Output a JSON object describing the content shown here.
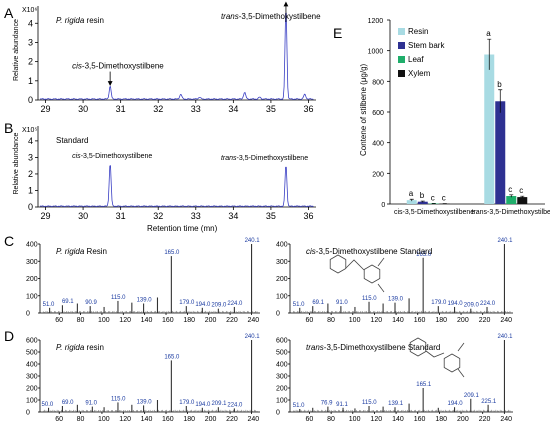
{
  "panel_letters": [
    "A",
    "B",
    "C",
    "D",
    "E"
  ],
  "chromatograms": [
    {
      "panel": "A",
      "sample": "P. rigida resin",
      "yexp": "X10⁶",
      "ylabel": "Relative abundance",
      "ticks_x": [
        "29",
        "30",
        "31",
        "32",
        "33",
        "34",
        "35",
        "36"
      ],
      "ticks_y": [
        "0",
        "1",
        "2",
        "3",
        "4"
      ],
      "annot": [
        {
          "text": "cis-3,5-Dimethoxystilbene",
          "x": 30.72
        },
        {
          "text": "trans-3,5-Dimethoxystilbene",
          "x": 35.4
        }
      ],
      "peaks": [
        {
          "x": 30.72,
          "y": 0.7
        },
        {
          "x": 35.4,
          "y": 4.85
        }
      ]
    },
    {
      "panel": "B",
      "sample": "Standard",
      "yexp": "X10⁵",
      "ylabel": "Relative abundance",
      "xlabel": "Retention time (mn)",
      "ticks_x": [
        "29",
        "30",
        "31",
        "32",
        "33",
        "34",
        "35",
        "36"
      ],
      "ticks_y": [
        "0",
        "1",
        "2",
        "3",
        "4"
      ],
      "annot": [
        {
          "text": "cis-3,5-Dimethoxystilbene",
          "x": 30.72
        },
        {
          "text": "trans-3,5-Dimethoxystilbene",
          "x": 35.4
        }
      ],
      "peaks": [
        {
          "x": 30.72,
          "y": 2.65
        },
        {
          "x": 35.4,
          "y": 2.55
        }
      ]
    }
  ],
  "mass_spectra": [
    {
      "id": "C-left",
      "title_italic": "P. rigida",
      "title": " Resin",
      "yticks": [
        "0",
        "100",
        "200",
        "300",
        "400"
      ],
      "ymax": 400,
      "labels": [
        {
          "mz": 51.0,
          "t": "51.0"
        },
        {
          "mz": 69.1,
          "t": "69.1"
        },
        {
          "mz": 90.9,
          "t": "90.9"
        },
        {
          "mz": 115.0,
          "t": "115.0"
        },
        {
          "mz": 139.0,
          "t": "139.0"
        },
        {
          "mz": 165.0,
          "t": "165.0"
        },
        {
          "mz": 179.0,
          "t": "179.0"
        },
        {
          "mz": 194.0,
          "t": "194.0"
        },
        {
          "mz": 209.0,
          "t": "209.0"
        },
        {
          "mz": 224.0,
          "t": "224.0"
        },
        {
          "mz": 240.1,
          "t": "240.1"
        }
      ],
      "bars": [
        [
          51,
          30
        ],
        [
          63,
          45
        ],
        [
          77,
          55
        ],
        [
          89,
          40
        ],
        [
          102,
          35
        ],
        [
          115,
          70
        ],
        [
          128,
          60
        ],
        [
          139,
          55
        ],
        [
          152,
          90
        ],
        [
          165,
          330
        ],
        [
          179,
          40
        ],
        [
          194,
          30
        ],
        [
          209,
          25
        ],
        [
          224,
          35
        ],
        [
          240.1,
          420
        ]
      ]
    },
    {
      "id": "C-right",
      "title_italic": "cis",
      "title": "-3,5-Dimethoxystilbene  Standard",
      "yticks": [
        "0",
        "100",
        "200",
        "300",
        "400"
      ],
      "ymax": 400,
      "labels": [
        {
          "mz": 51.0,
          "t": "51.0"
        },
        {
          "mz": 69.1,
          "t": "69.1"
        },
        {
          "mz": 91.0,
          "t": "91.0"
        },
        {
          "mz": 115.0,
          "t": "115.0"
        },
        {
          "mz": 139.0,
          "t": "139.0"
        },
        {
          "mz": 165.0,
          "t": "165.0"
        },
        {
          "mz": 179.0,
          "t": "179.0"
        },
        {
          "mz": 194.0,
          "t": "194.0"
        },
        {
          "mz": 209.0,
          "t": "209.0"
        },
        {
          "mz": 224.0,
          "t": "224.0"
        },
        {
          "mz": 240.1,
          "t": "240.1"
        }
      ],
      "bars": [
        [
          51,
          30
        ],
        [
          63,
          40
        ],
        [
          77,
          55
        ],
        [
          89,
          40
        ],
        [
          102,
          35
        ],
        [
          115,
          65
        ],
        [
          128,
          55
        ],
        [
          139,
          60
        ],
        [
          152,
          85
        ],
        [
          165,
          320
        ],
        [
          179,
          40
        ],
        [
          194,
          35
        ],
        [
          209,
          25
        ],
        [
          224,
          35
        ],
        [
          240.1,
          420
        ]
      ]
    },
    {
      "id": "D-left",
      "title_italic": "P. rigida",
      "title": " resin",
      "yticks": [
        "0",
        "100",
        "200",
        "300",
        "400",
        "500",
        "600"
      ],
      "ymax": 600,
      "labels": [
        {
          "mz": 50.0,
          "t": "50.0"
        },
        {
          "mz": 69.0,
          "t": "69.0"
        },
        {
          "mz": 91.0,
          "t": "91.0"
        },
        {
          "mz": 115.0,
          "t": "115.0"
        },
        {
          "mz": 139.0,
          "t": "139.0"
        },
        {
          "mz": 165.0,
          "t": "165.0"
        },
        {
          "mz": 179.0,
          "t": "179.0"
        },
        {
          "mz": 194.0,
          "t": "194.0"
        },
        {
          "mz": 209.1,
          "t": "209.1"
        },
        {
          "mz": 224.0,
          "t": "224.0"
        },
        {
          "mz": 240.1,
          "t": "240.1"
        }
      ],
      "bars": [
        [
          50,
          35
        ],
        [
          63,
          50
        ],
        [
          77,
          60
        ],
        [
          91,
          45
        ],
        [
          102,
          40
        ],
        [
          115,
          80
        ],
        [
          128,
          60
        ],
        [
          139,
          55
        ],
        [
          152,
          100
        ],
        [
          165,
          430
        ],
        [
          179,
          50
        ],
        [
          194,
          35
        ],
        [
          209,
          40
        ],
        [
          224,
          30
        ],
        [
          240.1,
          620
        ]
      ]
    },
    {
      "id": "D-right",
      "title_italic": "trans",
      "title": "-3,5-Dimethoxystilbene  Standard",
      "yticks": [
        "0",
        "100",
        "200",
        "300",
        "400",
        "500",
        "600"
      ],
      "ymax": 600,
      "labels": [
        {
          "mz": 51.0,
          "t": "51.0"
        },
        {
          "mz": 76.9,
          "t": "76.9"
        },
        {
          "mz": 91.1,
          "t": "91.1"
        },
        {
          "mz": 115.0,
          "t": "115.0"
        },
        {
          "mz": 139.1,
          "t": "139.1"
        },
        {
          "mz": 165.1,
          "t": "165.1"
        },
        {
          "mz": 194.0,
          "t": "194.0"
        },
        {
          "mz": 209.1,
          "t": "209.1"
        },
        {
          "mz": 225.1,
          "t": "225.1"
        },
        {
          "mz": 240.1,
          "t": "240.1"
        }
      ],
      "bars": [
        [
          51,
          25
        ],
        [
          63,
          35
        ],
        [
          77,
          45
        ],
        [
          91,
          35
        ],
        [
          102,
          30
        ],
        [
          115,
          50
        ],
        [
          128,
          45
        ],
        [
          139,
          40
        ],
        [
          152,
          70
        ],
        [
          165,
          200
        ],
        [
          179,
          35
        ],
        [
          194,
          40
        ],
        [
          209,
          110
        ],
        [
          225,
          60
        ],
        [
          240.1,
          630
        ]
      ]
    }
  ],
  "ms_xticks": [
    "60",
    "80",
    "100",
    "120",
    "140",
    "160",
    "180",
    "200",
    "220",
    "240"
  ],
  "chart_data": {
    "type": "bar",
    "categories": [
      "cis-3,5-Dimethoxystilbene",
      "trans-3,5-Dimethoxystilbene"
    ],
    "series": [
      {
        "name": "Resin",
        "color": "#a8dbe3",
        "values": [
          25,
          975
        ],
        "err": [
          6,
          100
        ],
        "letters": [
          "a",
          "a"
        ]
      },
      {
        "name": "Stem bark",
        "color": "#2e3192",
        "values": [
          15,
          670
        ],
        "err": [
          4,
          75
        ],
        "letters": [
          "b",
          "b"
        ]
      },
      {
        "name": "Leaf",
        "color": "#1fae6b",
        "values": [
          3,
          52
        ],
        "err": [
          1,
          8
        ],
        "letters": [
          "c",
          "c"
        ]
      },
      {
        "name": "Xylem",
        "color": "#111111",
        "values": [
          2,
          45
        ],
        "err": [
          1,
          6
        ],
        "letters": [
          "c",
          "c"
        ]
      }
    ],
    "ylabel": "Contene of stilbene (μg/g)",
    "yticks": [
      "0",
      "200",
      "400",
      "600",
      "800",
      "1000",
      "1200"
    ],
    "ylim": [
      0,
      1200
    ],
    "legend": "top-left"
  }
}
